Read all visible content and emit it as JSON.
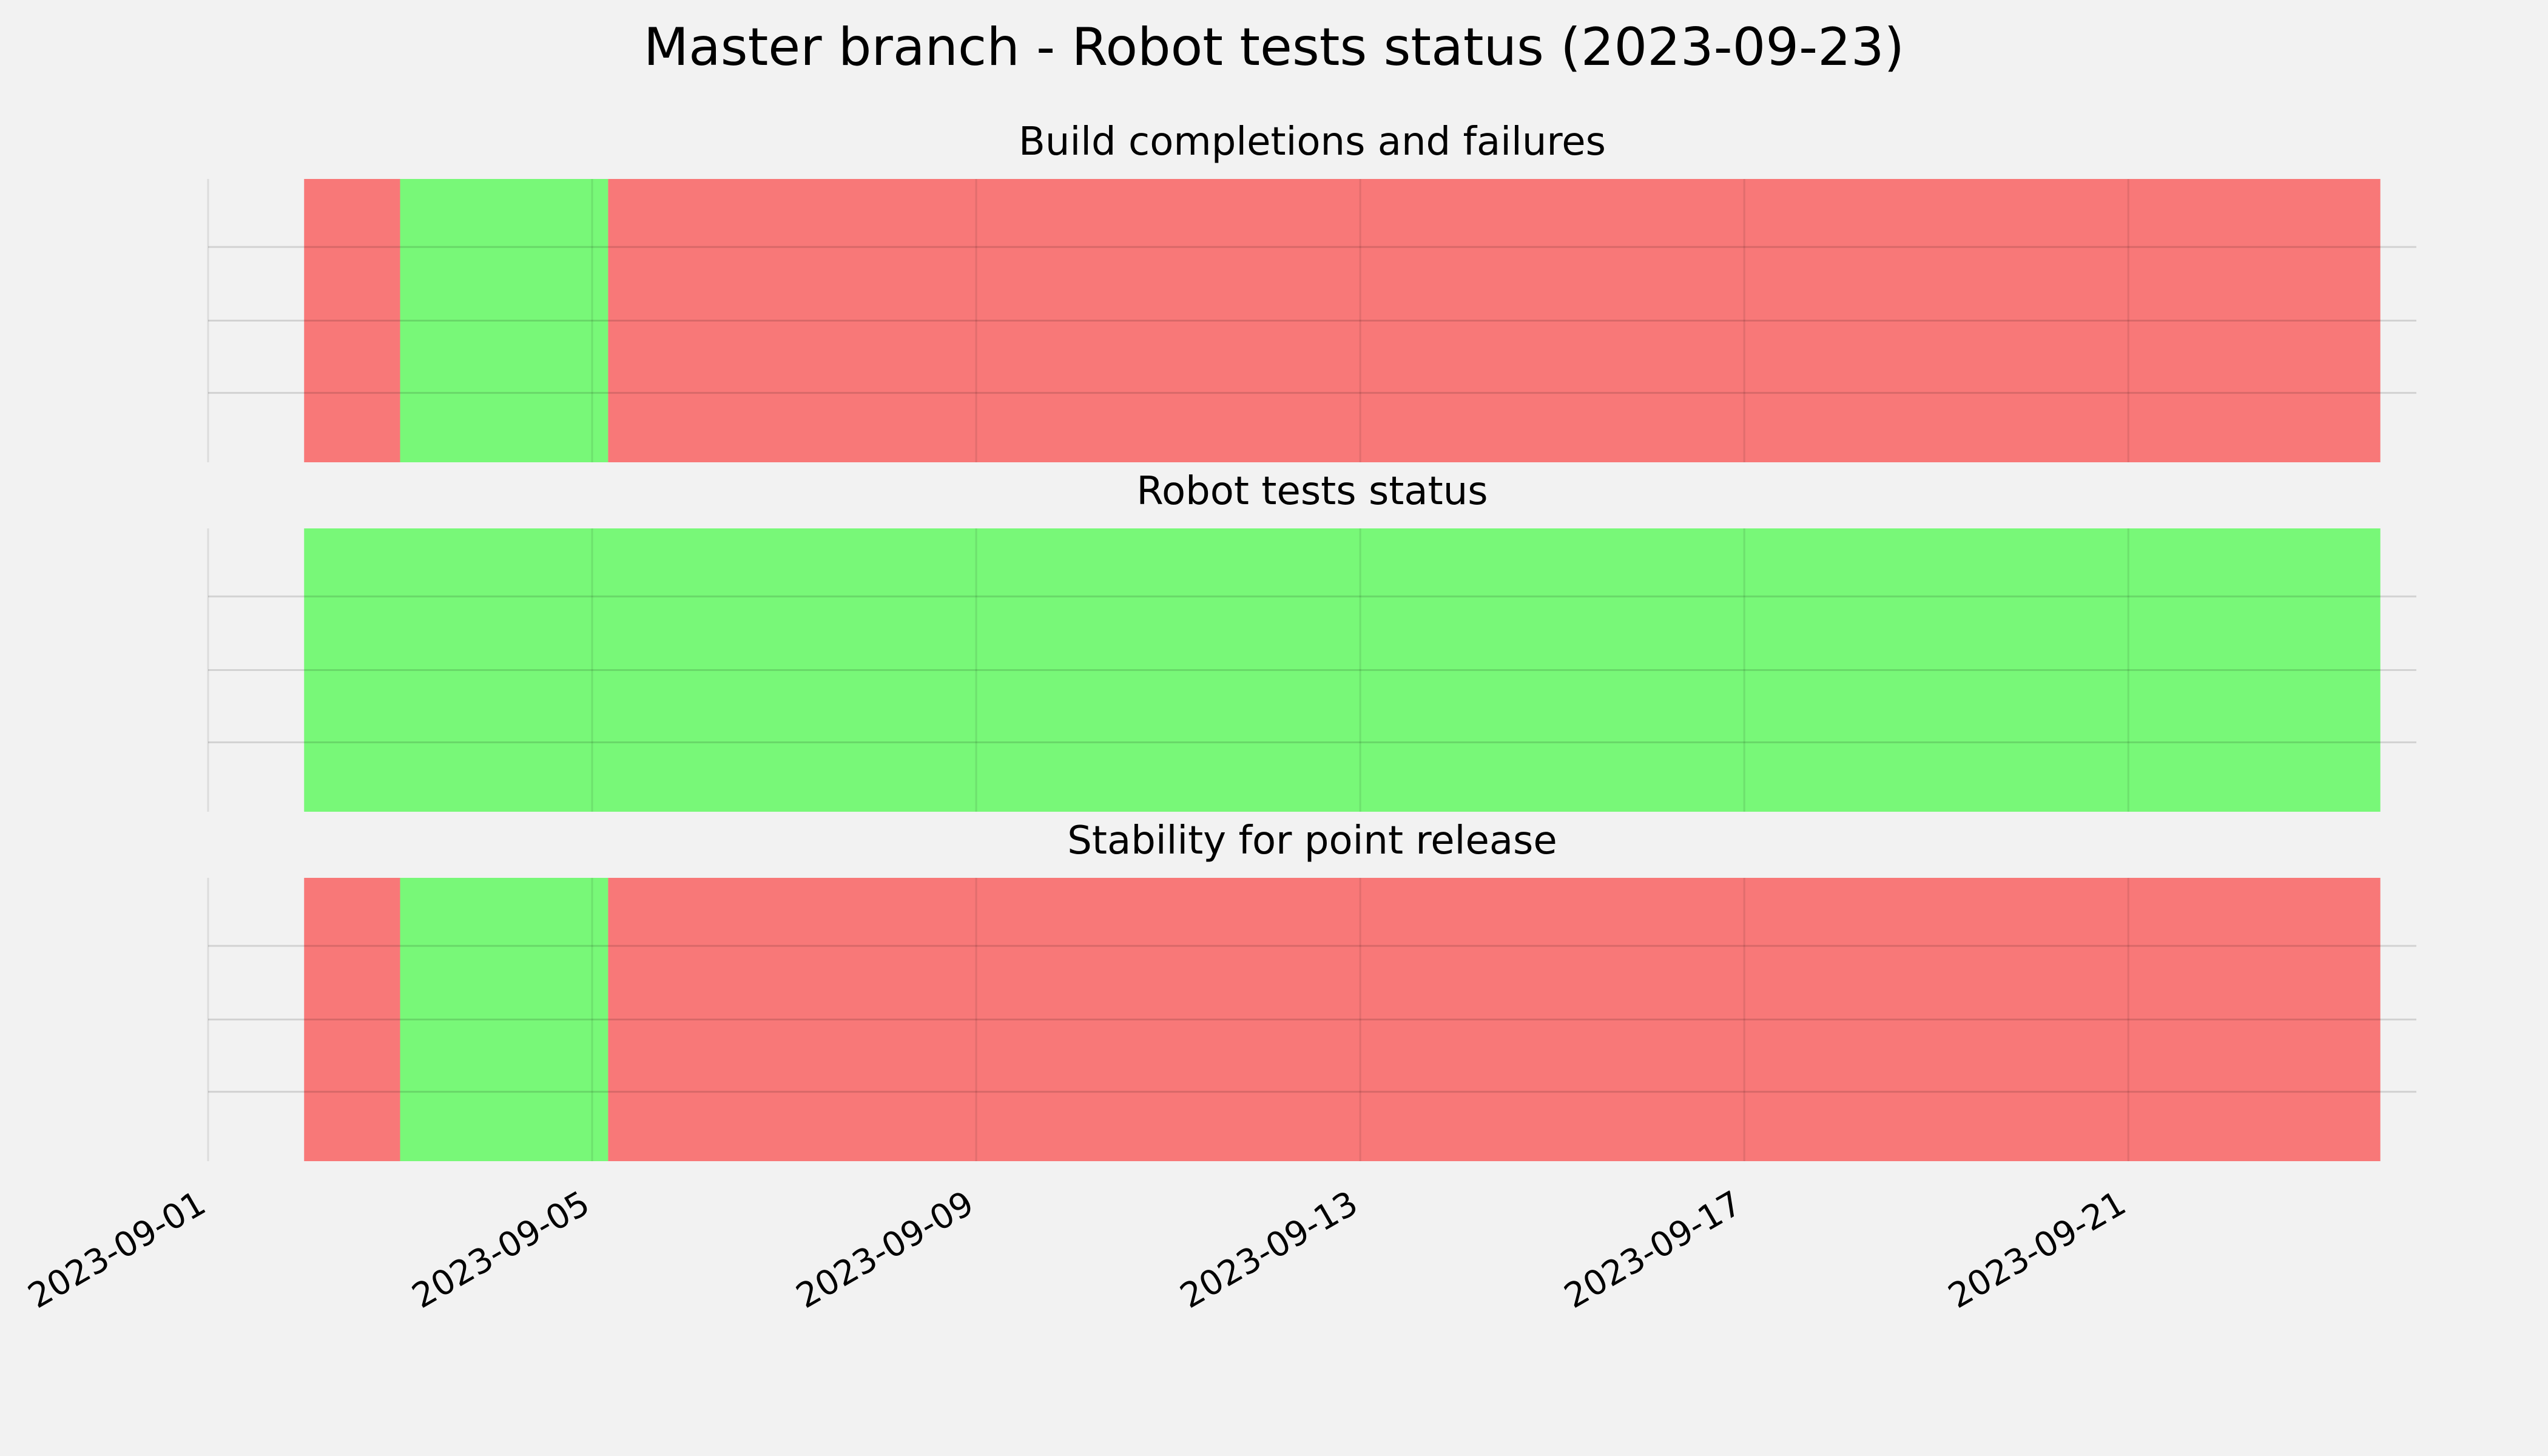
{
  "chart_data": {
    "type": "bar",
    "title": "Master branch - Robot tests status (2023-09-23)",
    "x_axis": {
      "type": "date",
      "range": [
        "2023-09-01",
        "2023-09-24"
      ],
      "tick_labels": [
        "2023-09-01",
        "2023-09-05",
        "2023-09-09",
        "2023-09-13",
        "2023-09-17",
        "2023-09-21"
      ]
    },
    "grid": true,
    "colors": {
      "failure": "#f87878",
      "success": "#78f878",
      "background": "#f2f2f2"
    },
    "panels": [
      {
        "title": "Build completions and failures",
        "segments": [
          {
            "start": "2023-09-02",
            "end": "2023-09-03",
            "status": "failure"
          },
          {
            "start": "2023-09-03",
            "end": "2023-09-05 04:00",
            "status": "success"
          },
          {
            "start": "2023-09-05 04:00",
            "end": "2023-09-23 15:00",
            "status": "failure"
          }
        ]
      },
      {
        "title": "Robot tests status",
        "segments": [
          {
            "start": "2023-09-02",
            "end": "2023-09-23 15:00",
            "status": "success"
          }
        ]
      },
      {
        "title": "Stability for point release",
        "segments": [
          {
            "start": "2023-09-02",
            "end": "2023-09-03",
            "status": "failure"
          },
          {
            "start": "2023-09-03",
            "end": "2023-09-05 04:00",
            "status": "success"
          },
          {
            "start": "2023-09-05 04:00",
            "end": "2023-09-23 15:00",
            "status": "failure"
          }
        ]
      }
    ]
  }
}
